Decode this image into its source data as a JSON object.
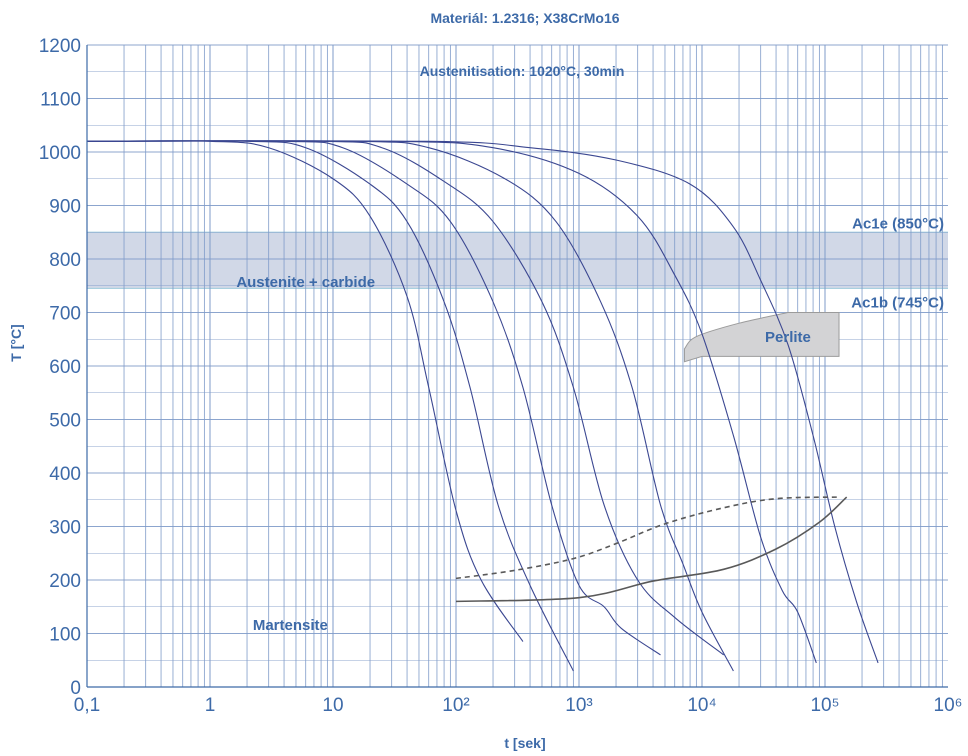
{
  "chart_data": {
    "type": "line",
    "title": "Materiál: 1.2316; X38CrMo16",
    "subtitle": "Austenitisation: 1020°C, 30min",
    "xlabel": "t [sek]",
    "ylabel": "T [°C]",
    "x_scale": "log",
    "xlim": [
      0.1,
      1000000
    ],
    "ylim": [
      0,
      1200
    ],
    "grid": true,
    "x_ticks": [
      {
        "value": 0.1,
        "label": "0,1"
      },
      {
        "value": 1,
        "label": "1"
      },
      {
        "value": 10,
        "label": "10"
      },
      {
        "value": 100,
        "label": "10²"
      },
      {
        "value": 1000,
        "label": "10³"
      },
      {
        "value": 10000,
        "label": "10⁴"
      },
      {
        "value": 100000,
        "label": "10⁵"
      },
      {
        "value": 1000000,
        "label": "10⁶"
      }
    ],
    "y_ticks": [
      {
        "value": 0,
        "label": "0"
      },
      {
        "value": 100,
        "label": "100"
      },
      {
        "value": 200,
        "label": "200"
      },
      {
        "value": 300,
        "label": "300"
      },
      {
        "value": 400,
        "label": "400"
      },
      {
        "value": 500,
        "label": "500"
      },
      {
        "value": 600,
        "label": "600"
      },
      {
        "value": 700,
        "label": "700"
      },
      {
        "value": 800,
        "label": "800"
      },
      {
        "value": 900,
        "label": "900"
      },
      {
        "value": 1000,
        "label": "1000"
      },
      {
        "value": 1100,
        "label": "1100"
      },
      {
        "value": 1200,
        "label": "1200"
      }
    ],
    "band": {
      "ymin": 745,
      "ymax": 850
    },
    "reference_labels": [
      {
        "text": "Ac1e (850°C)",
        "y": 850
      },
      {
        "text": "Ac1b (745°C)",
        "y": 745
      }
    ],
    "region_labels": [
      {
        "text": "Austenite + carbide",
        "x": 6,
        "y": 748
      },
      {
        "text": "Martensite",
        "x": 4.5,
        "y": 107
      },
      {
        "text": "Perlite",
        "x": 50000,
        "y": 645
      }
    ],
    "perlite_region": [
      [
        7200,
        632
      ],
      [
        9000,
        655
      ],
      [
        20000,
        680
      ],
      [
        50000,
        700
      ],
      [
        130000,
        700
      ],
      [
        130000,
        618
      ],
      [
        10000,
        618
      ],
      [
        7200,
        608
      ]
    ],
    "cooling_curves": [
      {
        "values": [
          [
            0.1,
            1020
          ],
          [
            1,
            1020
          ],
          [
            3,
            1008
          ],
          [
            10,
            950
          ],
          [
            20,
            880
          ],
          [
            40,
            730
          ],
          [
            60,
            560
          ],
          [
            100,
            330
          ],
          [
            160,
            200
          ],
          [
            350,
            85
          ]
        ]
      },
      {
        "values": [
          [
            0.1,
            1020
          ],
          [
            2,
            1020
          ],
          [
            6,
            1008
          ],
          [
            20,
            940
          ],
          [
            40,
            870
          ],
          [
            80,
            720
          ],
          [
            130,
            560
          ],
          [
            220,
            340
          ],
          [
            400,
            190
          ],
          [
            900,
            30
          ]
        ]
      },
      {
        "values": [
          [
            0.1,
            1020
          ],
          [
            4,
            1020
          ],
          [
            12,
            1008
          ],
          [
            40,
            940
          ],
          [
            90,
            870
          ],
          [
            200,
            720
          ],
          [
            350,
            560
          ],
          [
            600,
            340
          ],
          [
            1000,
            190
          ],
          [
            1600,
            150
          ],
          [
            2200,
            110
          ],
          [
            4600,
            60
          ]
        ]
      },
      {
        "values": [
          [
            0.1,
            1020
          ],
          [
            8,
            1020
          ],
          [
            25,
            1008
          ],
          [
            80,
            945
          ],
          [
            200,
            870
          ],
          [
            500,
            720
          ],
          [
            900,
            560
          ],
          [
            1600,
            340
          ],
          [
            3000,
            200
          ],
          [
            6000,
            130
          ],
          [
            15000,
            60
          ]
        ]
      },
      {
        "values": [
          [
            0.1,
            1020
          ],
          [
            15,
            1020
          ],
          [
            60,
            1008
          ],
          [
            250,
            950
          ],
          [
            650,
            870
          ],
          [
            1500,
            720
          ],
          [
            2700,
            560
          ],
          [
            4600,
            340
          ],
          [
            7000,
            230
          ],
          [
            10000,
            140
          ],
          [
            18000,
            30
          ]
        ]
      },
      {
        "values": [
          [
            0.1,
            1020
          ],
          [
            30,
            1020
          ],
          [
            200,
            1008
          ],
          [
            1000,
            960
          ],
          [
            3000,
            880
          ],
          [
            6000,
            770
          ],
          [
            10000,
            660
          ],
          [
            18000,
            470
          ],
          [
            30000,
            280
          ],
          [
            45000,
            180
          ],
          [
            60000,
            140
          ],
          [
            85000,
            45
          ]
        ]
      },
      {
        "values": [
          [
            0.1,
            1020
          ],
          [
            60,
            1020
          ],
          [
            400,
            1008
          ],
          [
            2000,
            985
          ],
          [
            8000,
            940
          ],
          [
            18000,
            860
          ],
          [
            30000,
            760
          ],
          [
            50000,
            640
          ],
          [
            80000,
            470
          ],
          [
            120000,
            300
          ],
          [
            180000,
            160
          ],
          [
            270000,
            45
          ]
        ]
      }
    ],
    "series": [
      {
        "style": "solid",
        "values": [
          [
            100,
            160
          ],
          [
            1000,
            167
          ],
          [
            4000,
            198
          ],
          [
            15000,
            220
          ],
          [
            40000,
            258
          ],
          [
            90000,
            308
          ],
          [
            150000,
            355
          ]
        ]
      },
      {
        "style": "dashed",
        "values": [
          [
            100,
            203
          ],
          [
            300,
            218
          ],
          [
            900,
            240
          ],
          [
            2000,
            268
          ],
          [
            5000,
            305
          ],
          [
            15000,
            335
          ],
          [
            40000,
            352
          ],
          [
            130000,
            355
          ]
        ]
      }
    ],
    "colors": {
      "cooling": "#3b4791",
      "grid": "#7f9bc9",
      "text": "#3d6aa8",
      "band": "#c9d1e3",
      "curves": "#595959",
      "perlite_fill": "#d3d3d5",
      "perlite_stroke": "#9b9b9b"
    }
  }
}
